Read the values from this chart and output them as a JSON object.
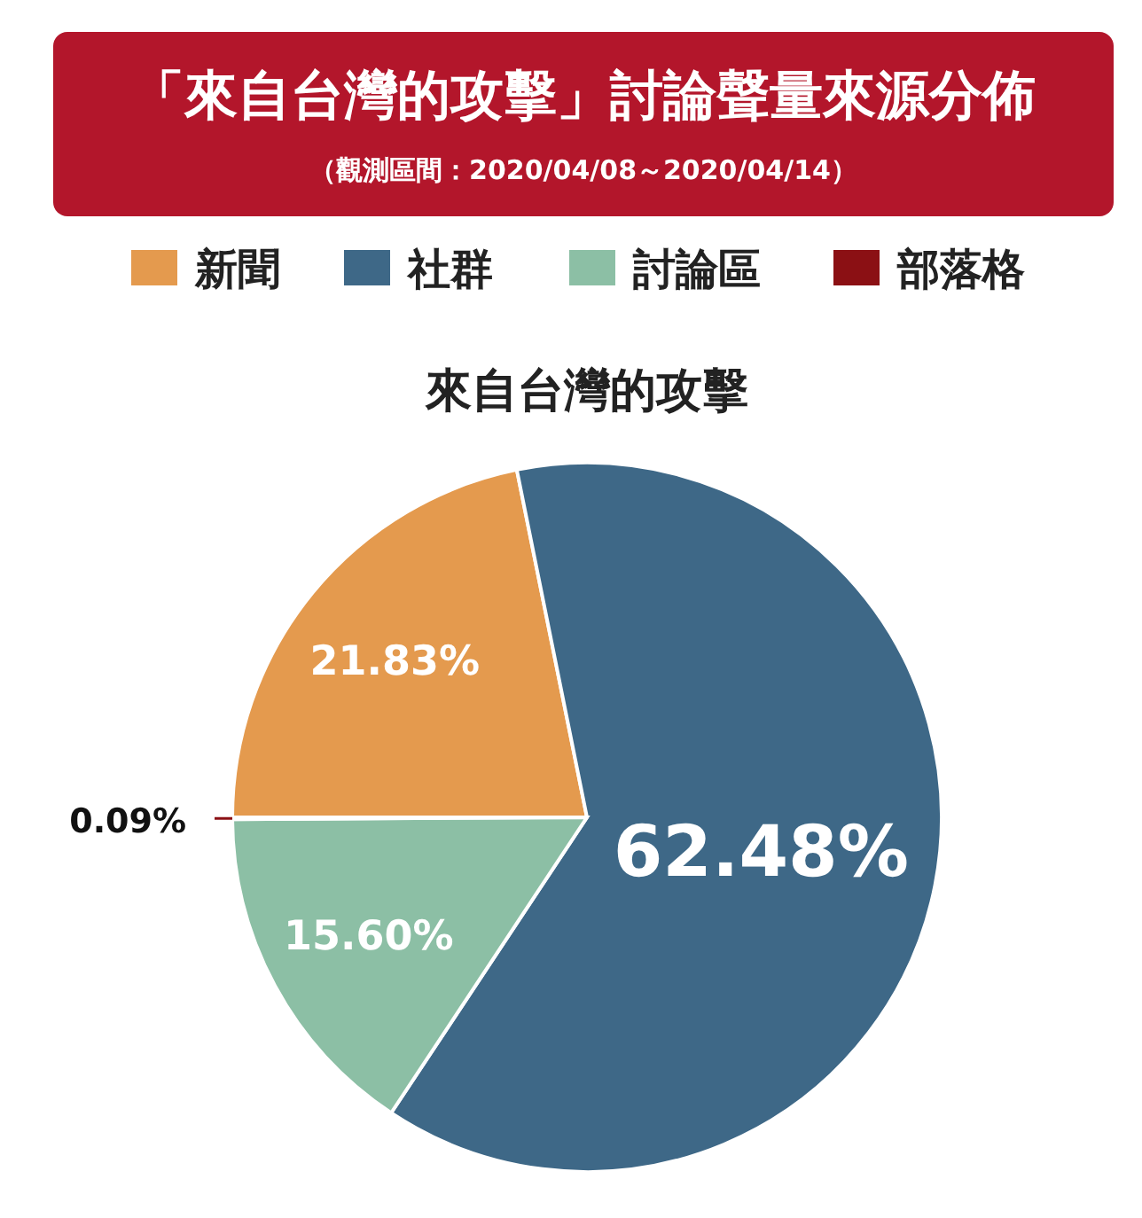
{
  "chart_data": {
    "type": "pie",
    "title": "「來自台灣的攻擊」討論聲量來源分佈",
    "subtitle": "（觀測區間：2020/04/08～2020/04/14）",
    "annotations": [
      "來自台灣的攻擊"
    ],
    "categories": [
      "新聞",
      "社群",
      "討論區",
      "部落格"
    ],
    "values": [
      21.83,
      62.48,
      15.6,
      0.09
    ],
    "colors": [
      "#e49a4e",
      "#3e6887",
      "#8cbfa5",
      "#8b1014"
    ],
    "value_labels": [
      "21.83%",
      "62.48%",
      "15.60%",
      "0.09%"
    ],
    "legend": "top"
  }
}
